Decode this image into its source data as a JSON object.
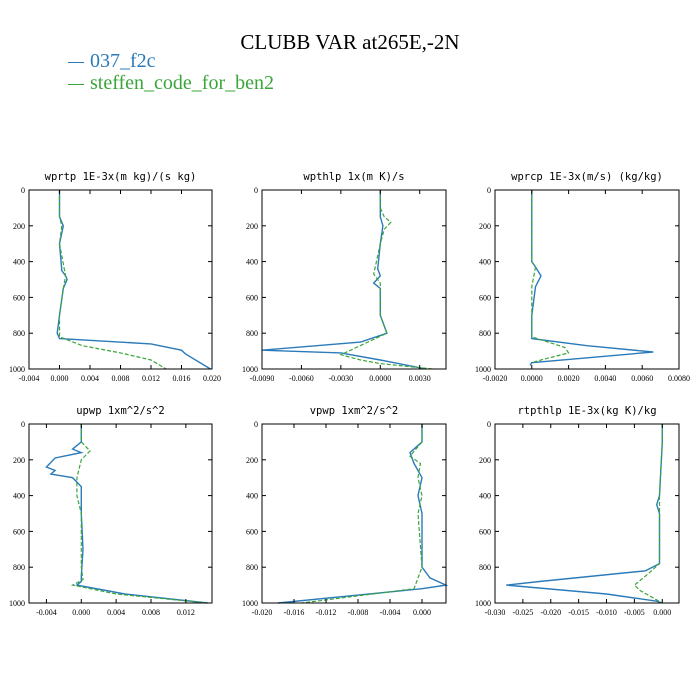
{
  "title": "CLUBB VAR at265E,-2N",
  "legend": [
    {
      "name": "037_f2c",
      "color": "#2b7bba"
    },
    {
      "name": "steffen_code_for_ben2",
      "color": "#3aa63a"
    }
  ],
  "chart_data": [
    {
      "type": "line",
      "title": "wprtp  1E-3x(m kg)/(s kg)",
      "xlim": [
        -0.004,
        0.02
      ],
      "ylim": [
        1000,
        0
      ],
      "xticks": [
        -0.004,
        0.0,
        0.004,
        0.008,
        0.012,
        0.016,
        0.02
      ],
      "xtick_labels": [
        "-0.004",
        "0.000",
        "0.004",
        "0.008",
        "0.012",
        "0.016",
        "0.020"
      ],
      "yticks": [
        0,
        200,
        400,
        600,
        800,
        1000
      ],
      "ytick_labels": [
        "0",
        "200",
        "400",
        "600",
        "800",
        "1000"
      ],
      "series": [
        {
          "name": "037_f2c",
          "x": [
            0.0,
            0.0,
            0.0005,
            0.0,
            0.0003,
            0.0008,
            0.001,
            0.0005,
            0.0,
            -0.0003,
            0.0,
            0.012,
            0.016,
            0.0165,
            0.0198
          ],
          "y": [
            0,
            150,
            200,
            300,
            450,
            480,
            500,
            550,
            700,
            800,
            830,
            860,
            895,
            915,
            1000
          ]
        },
        {
          "name": "steffen_code_for_ben2",
          "x": [
            0.0,
            0.0,
            0.0003,
            0.0,
            0.0008,
            0.0005,
            0.0,
            0.0,
            0.003,
            0.008,
            0.012,
            0.014
          ],
          "y": [
            0,
            150,
            200,
            300,
            480,
            550,
            700,
            820,
            870,
            910,
            950,
            1000
          ]
        }
      ]
    },
    {
      "type": "line",
      "title": "wpthlp  1x(m K)/s",
      "xlim": [
        -0.009,
        0.005
      ],
      "ylim": [
        1000,
        0
      ],
      "xticks": [
        -0.009,
        -0.006,
        -0.003,
        0.0,
        0.003
      ],
      "xtick_labels": [
        "-0.0090",
        "-0.0060",
        "-0.0030",
        "0.0000",
        "0.0030"
      ],
      "yticks": [
        0,
        200,
        400,
        600,
        800,
        1000
      ],
      "ytick_labels": [
        "0",
        "200",
        "400",
        "600",
        "800",
        "1000"
      ],
      "series": [
        {
          "name": "037_f2c",
          "x": [
            0.0,
            0.0,
            0.0,
            0.0002,
            0.0,
            -0.0002,
            0.0,
            -0.0005,
            0.0,
            0.0,
            0.0005,
            -0.0015,
            -0.009,
            -0.003,
            0.0,
            0.0035
          ],
          "y": [
            0,
            100,
            150,
            200,
            300,
            440,
            480,
            520,
            550,
            700,
            800,
            850,
            895,
            910,
            950,
            1000
          ]
        },
        {
          "name": "steffen_code_for_ben2",
          "x": [
            0.0,
            0.0,
            0.0003,
            0.0008,
            0.0003,
            0.0,
            -0.0005,
            0.0,
            0.0,
            0.0005,
            -0.003,
            -0.0015,
            0.0,
            0.004
          ],
          "y": [
            0,
            100,
            150,
            180,
            220,
            300,
            470,
            520,
            700,
            800,
            920,
            950,
            970,
            1000
          ]
        }
      ]
    },
    {
      "type": "line",
      "title": "wprcp  1E-3x(m/s) (kg/kg)",
      "xlim": [
        -0.002,
        0.008
      ],
      "ylim": [
        1000,
        0
      ],
      "xticks": [
        -0.002,
        0.0,
        0.002,
        0.004,
        0.006,
        0.008
      ],
      "xtick_labels": [
        "-0.0020",
        "0.0000",
        "0.0020",
        "0.0040",
        "0.0060",
        "0.0080"
      ],
      "yticks": [
        0,
        200,
        400,
        600,
        800,
        1000
      ],
      "ytick_labels": [
        "0",
        "200",
        "400",
        "600",
        "800",
        "1000"
      ],
      "series": [
        {
          "name": "037_f2c",
          "x": [
            0.0,
            0.0,
            0.0,
            0.0002,
            0.0005,
            0.0002,
            0.0,
            0.0,
            0.003,
            0.0066,
            0.0,
            -0.0001
          ],
          "y": [
            0,
            300,
            400,
            430,
            480,
            540,
            700,
            830,
            870,
            905,
            965,
            980
          ]
        },
        {
          "name": "steffen_code_for_ben2",
          "x": [
            0.0,
            0.0,
            0.0,
            0.0002,
            0.0,
            0.0,
            0.0018,
            0.002,
            0.0005,
            0.0
          ],
          "y": [
            0,
            300,
            400,
            430,
            540,
            820,
            880,
            910,
            950,
            965
          ]
        }
      ]
    },
    {
      "type": "line",
      "title": "upwp  1xm^2/s^2",
      "xlim": [
        -0.006,
        0.015
      ],
      "ylim": [
        1000,
        0
      ],
      "xticks": [
        -0.004,
        0.0,
        0.004,
        0.008,
        0.012
      ],
      "xtick_labels": [
        "-0.004",
        "0.000",
        "0.004",
        "0.008",
        "0.012"
      ],
      "yticks": [
        0,
        200,
        400,
        600,
        800,
        1000
      ],
      "ytick_labels": [
        "0",
        "200",
        "400",
        "600",
        "800",
        "1000"
      ],
      "series": [
        {
          "name": "037_f2c",
          "x": [
            0.0,
            0.0,
            -0.001,
            0.0,
            -0.003,
            -0.004,
            -0.003,
            -0.0035,
            -0.001,
            0.0,
            0.0,
            0.0002,
            0.0,
            0.0,
            -0.0005,
            0.005,
            0.0145
          ],
          "y": [
            0,
            100,
            140,
            160,
            190,
            240,
            260,
            280,
            300,
            350,
            500,
            700,
            850,
            880,
            900,
            950,
            1000
          ]
        },
        {
          "name": "steffen_code_for_ben2",
          "x": [
            0.0,
            0.0,
            0.001,
            0.0,
            -0.0005,
            -0.0005,
            0.0,
            0.0,
            0.0002,
            -0.001,
            0.004,
            0.0145
          ],
          "y": [
            0,
            100,
            150,
            200,
            300,
            400,
            500,
            800,
            870,
            900,
            950,
            1000
          ]
        }
      ]
    },
    {
      "type": "line",
      "title": "vpwp  1xm^2/s^2",
      "xlim": [
        -0.02,
        0.003
      ],
      "ylim": [
        1000,
        0
      ],
      "xticks": [
        -0.02,
        -0.016,
        -0.012,
        -0.008,
        -0.004,
        0.0
      ],
      "xtick_labels": [
        "-0.020",
        "-0.016",
        "-0.012",
        "-0.008",
        "-0.004",
        "0.000"
      ],
      "yticks": [
        0,
        200,
        400,
        600,
        800,
        1000
      ],
      "ytick_labels": [
        "0",
        "200",
        "400",
        "600",
        "800",
        "1000"
      ],
      "series": [
        {
          "name": "037_f2c",
          "x": [
            0.0,
            0.0,
            -0.0015,
            -0.001,
            0.0,
            -0.0005,
            0.0,
            0.0,
            0.001,
            0.003,
            0.0,
            -0.018
          ],
          "y": [
            0,
            100,
            160,
            220,
            300,
            400,
            500,
            800,
            860,
            900,
            920,
            1000
          ]
        },
        {
          "name": "steffen_code_for_ben2",
          "x": [
            0.0,
            0.0,
            -0.0015,
            -0.0002,
            -0.0005,
            0.0,
            -0.0005,
            0.0,
            -0.001,
            -0.015
          ],
          "y": [
            0,
            100,
            180,
            220,
            300,
            400,
            500,
            800,
            920,
            1000
          ]
        }
      ]
    },
    {
      "type": "line",
      "title": "rtpthlp  1E-3x(kg K)/kg",
      "xlim": [
        -0.03,
        0.003
      ],
      "ylim": [
        1000,
        0
      ],
      "xticks": [
        -0.03,
        -0.025,
        -0.02,
        -0.015,
        -0.01,
        -0.005,
        0.0
      ],
      "xtick_labels": [
        "-0.030",
        "-0.025",
        "-0.020",
        "-0.015",
        "-0.010",
        "-0.005",
        "0.000"
      ],
      "yticks": [
        0,
        200,
        400,
        600,
        800,
        1000
      ],
      "ytick_labels": [
        "0",
        "200",
        "400",
        "600",
        "800",
        "1000"
      ],
      "series": [
        {
          "name": "037_f2c",
          "x": [
            0.0,
            0.0,
            -0.0005,
            -0.001,
            -0.0005,
            -0.0005,
            -0.003,
            -0.022,
            -0.028,
            -0.01,
            -0.001,
            0.0
          ],
          "y": [
            0,
            100,
            400,
            450,
            500,
            780,
            820,
            880,
            900,
            950,
            990,
            1000
          ]
        },
        {
          "name": "steffen_code_for_ben2",
          "x": [
            0.0,
            0.0,
            -0.0005,
            -0.0005,
            -0.003,
            -0.005,
            -0.004,
            0.0
          ],
          "y": [
            0,
            100,
            400,
            780,
            850,
            900,
            930,
            1000
          ]
        }
      ]
    }
  ]
}
